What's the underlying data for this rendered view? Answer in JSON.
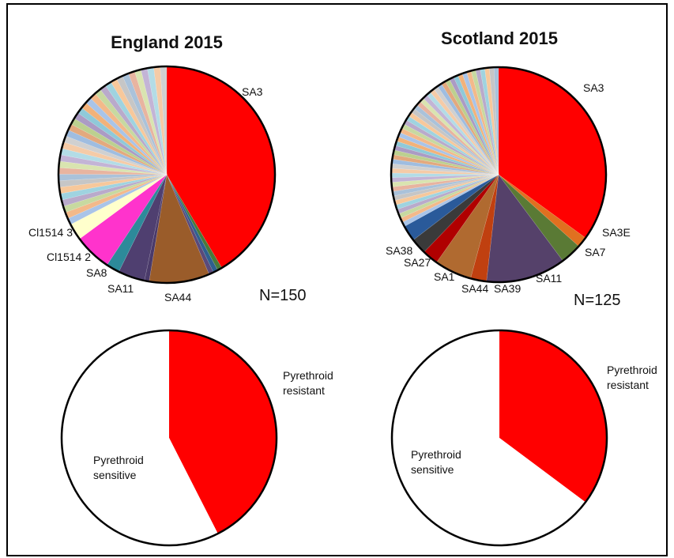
{
  "chart_data": [
    {
      "type": "pie",
      "title": "England 2015",
      "n_label": "N=150",
      "other_slice_count": 34,
      "slices": [
        {
          "label": "SA3",
          "value": 41.5,
          "color": "#ff0000"
        },
        {
          "label": "",
          "value": 0.7,
          "color": "#4a7a3a"
        },
        {
          "label": "",
          "value": 0.7,
          "color": "#2f5f8f"
        },
        {
          "label": "",
          "value": 0.7,
          "color": "#5a4a7a"
        },
        {
          "label": "SA44",
          "value": 9.0,
          "color": "#9a5c2a"
        },
        {
          "label": "",
          "value": 0.7,
          "color": "#4a3a6a"
        },
        {
          "label": "SA11",
          "value": 4.0,
          "color": "#4f3f70"
        },
        {
          "label": "SA8",
          "value": 2.0,
          "color": "#2d8a9a"
        },
        {
          "label": "Cl1514 2",
          "value": 5.6,
          "color": "#ff33cc"
        },
        {
          "label": "Cl1514 3",
          "value": 2.5,
          "color": "#ffffcc"
        }
      ]
    },
    {
      "type": "pie",
      "title": "Scotland 2015",
      "n_label": "N=125",
      "other_slice_count": 48,
      "slices": [
        {
          "label": "SA3",
          "value": 35.0,
          "color": "#ff0000"
        },
        {
          "label": "SA3E",
          "value": 1.6,
          "color": "#e07020"
        },
        {
          "label": "SA7",
          "value": 3.2,
          "color": "#5a7a35"
        },
        {
          "label": "SA11",
          "value": 12.0,
          "color": "#55416a"
        },
        {
          "label": "SA39",
          "value": 2.4,
          "color": "#c04010"
        },
        {
          "label": "SA44",
          "value": 5.6,
          "color": "#b06a30"
        },
        {
          "label": "SA1",
          "value": 2.4,
          "color": "#b00000"
        },
        {
          "label": "SA27",
          "value": 2.4,
          "color": "#3a3a3a"
        },
        {
          "label": "SA38",
          "value": 2.4,
          "color": "#2a5a9a"
        }
      ]
    },
    {
      "type": "pie",
      "slices": [
        {
          "label": "Pyrethroid resistant",
          "value": 42.5,
          "color": "#ff0000"
        },
        {
          "label": "Pyrethroid sensitive",
          "value": 57.5,
          "color": "#ffffff"
        }
      ]
    },
    {
      "type": "pie",
      "slices": [
        {
          "label": "Pyrethroid resistant",
          "value": 35.2,
          "color": "#ff0000"
        },
        {
          "label": "Pyrethroid sensitive",
          "value": 64.8,
          "color": "#ffffff"
        }
      ]
    }
  ],
  "labels": {
    "resistant_line1": "Pyrethroid",
    "resistant_line2": "resistant",
    "sensitive_line1": "Pyrethroid",
    "sensitive_line2": "sensitive"
  },
  "palette_other": [
    "#a9c4e8",
    "#f3b98a",
    "#c7d9a0",
    "#b9aacb",
    "#9fd3e0",
    "#f7c89b",
    "#c6c6c6",
    "#aac2da",
    "#e8b4a0",
    "#d9e4b0",
    "#c3b4d6",
    "#b3dce6",
    "#f5cba7",
    "#d0d0d0",
    "#9fbde0",
    "#e3a97e",
    "#bcd08f",
    "#ab9bc4",
    "#8fc9d9",
    "#f2b27a"
  ]
}
